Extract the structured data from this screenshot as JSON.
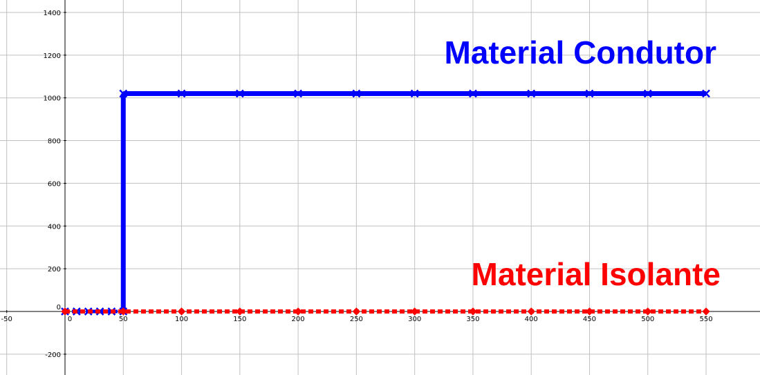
{
  "chart_data": {
    "type": "line",
    "title": "",
    "xlabel": "",
    "ylabel": "",
    "xlim": [
      -55,
      600
    ],
    "ylim": [
      -300,
      1450
    ],
    "x_ticks": [
      -50,
      0,
      50,
      100,
      150,
      200,
      250,
      300,
      350,
      400,
      450,
      500,
      550
    ],
    "y_ticks": [
      -200,
      0,
      200,
      400,
      600,
      800,
      1000,
      1200,
      1400
    ],
    "grid_step_x": 50,
    "grid_step_y": 200,
    "grid": true,
    "series": [
      {
        "name": "Material Condutor",
        "color": "#0000ff",
        "marker": "x",
        "line_style": "solid",
        "segments": [
          [
            [
              50,
              0
            ],
            [
              50,
              1020
            ]
          ]
        ],
        "points": [
          [
            0,
            0
          ],
          [
            10,
            0
          ],
          [
            20,
            0
          ],
          [
            30,
            0
          ],
          [
            40,
            0
          ],
          [
            50,
            0
          ],
          [
            50,
            1020
          ],
          [
            100,
            1020
          ],
          [
            150,
            1020
          ],
          [
            200,
            1020
          ],
          [
            250,
            1020
          ],
          [
            300,
            1020
          ],
          [
            350,
            1020
          ],
          [
            400,
            1020
          ],
          [
            450,
            1020
          ],
          [
            500,
            1020
          ],
          [
            550,
            1020
          ]
        ]
      },
      {
        "name": "Material Isolante",
        "color": "#ff0000",
        "marker": "diamond",
        "line_style": "dashed",
        "segments": [],
        "points": [
          [
            0,
            0
          ],
          [
            50,
            0
          ],
          [
            100,
            0
          ],
          [
            150,
            0
          ],
          [
            200,
            0
          ],
          [
            250,
            0
          ],
          [
            300,
            0
          ],
          [
            350,
            0
          ],
          [
            400,
            0
          ],
          [
            450,
            0
          ],
          [
            500,
            0
          ],
          [
            550,
            0
          ]
        ]
      }
    ]
  }
}
